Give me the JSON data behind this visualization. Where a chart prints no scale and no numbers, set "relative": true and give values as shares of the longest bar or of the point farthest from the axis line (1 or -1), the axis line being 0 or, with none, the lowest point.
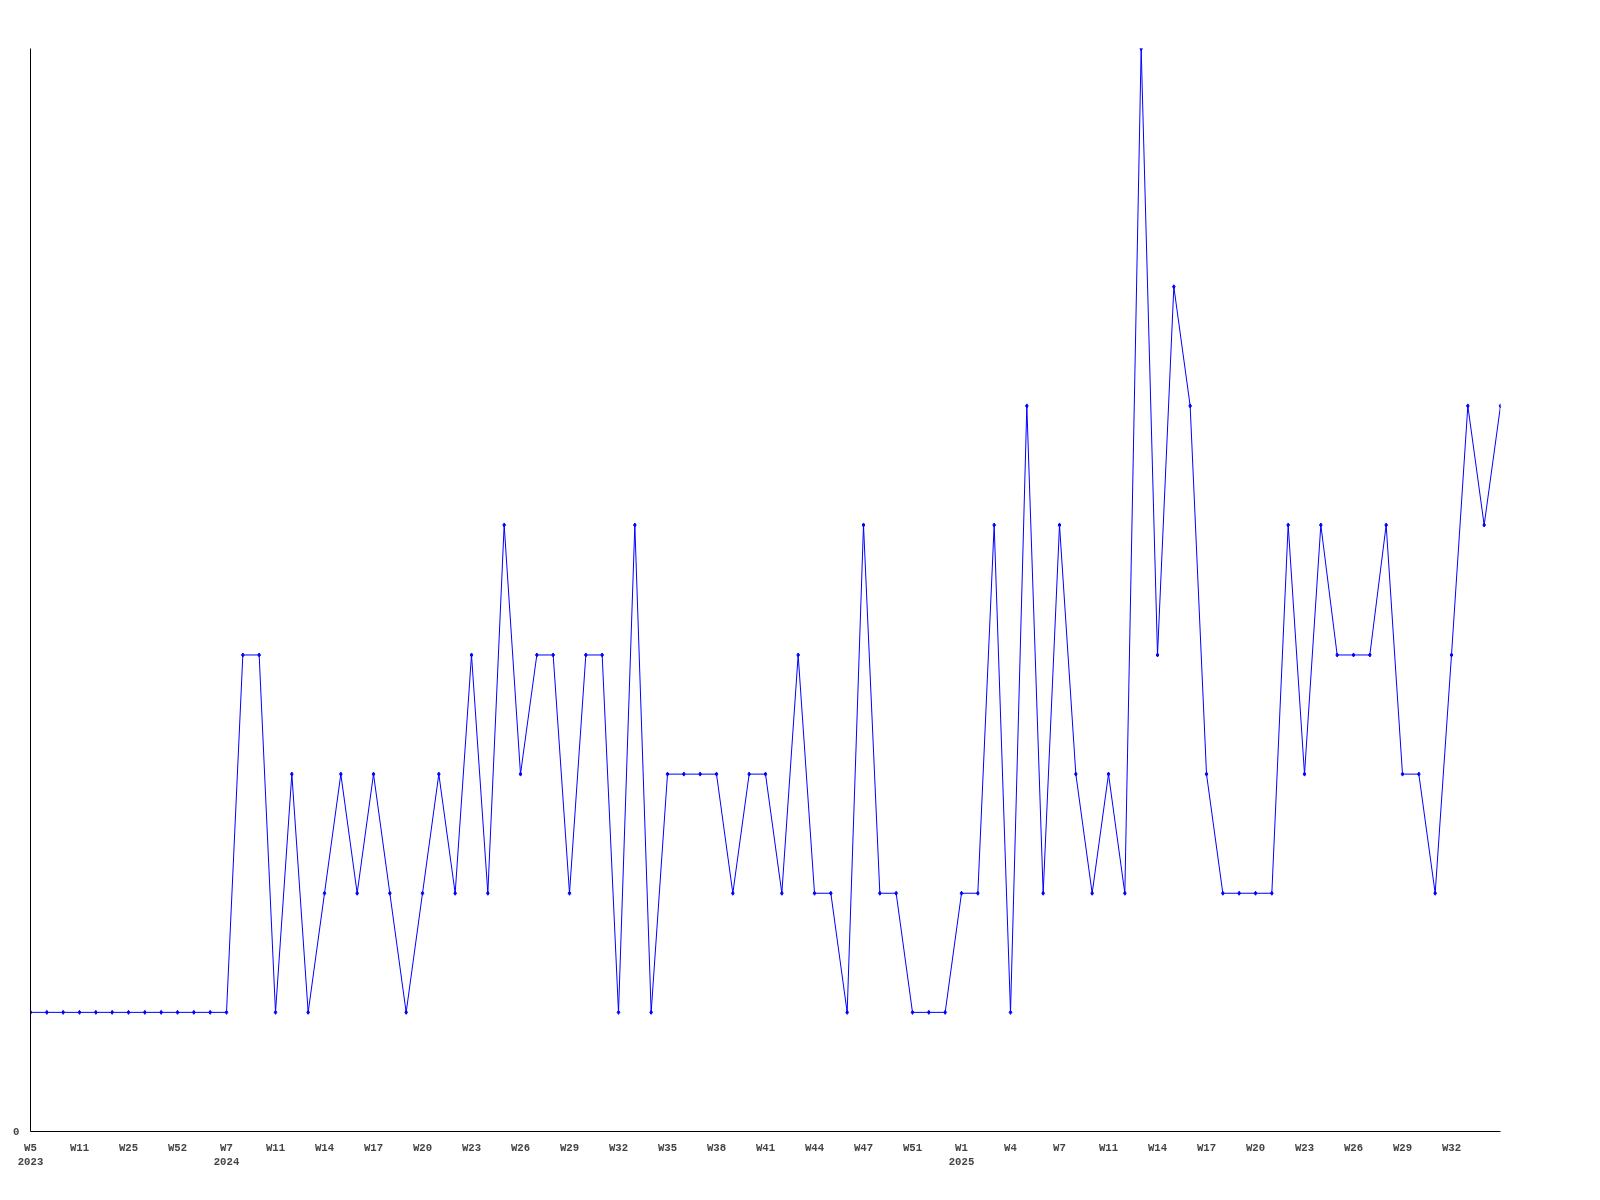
{
  "chart_data": {
    "type": "line",
    "relative": true,
    "annotations": [
      "0"
    ],
    "marker": "diamond",
    "line_style": "solid",
    "grid": false,
    "categories": [
      "W5\n2023",
      null,
      null,
      "W11",
      null,
      null,
      "W25",
      null,
      null,
      "W52",
      null,
      null,
      "W7\n2024",
      null,
      null,
      "W11",
      null,
      null,
      "W14",
      null,
      null,
      "W17",
      null,
      null,
      "W20",
      null,
      null,
      "W23",
      null,
      null,
      "W26",
      null,
      null,
      "W29",
      null,
      null,
      "W32",
      null,
      null,
      "W35",
      null,
      null,
      "W38",
      null,
      null,
      "W41",
      null,
      null,
      "W44",
      null,
      null,
      "W47",
      null,
      null,
      "W51",
      null,
      null,
      "W1\n2025",
      null,
      null,
      "W4",
      null,
      null,
      "W7",
      null,
      null,
      "W11",
      null,
      null,
      "W14",
      null,
      null,
      "W17",
      null,
      null,
      "W20",
      null,
      null,
      "W23",
      null,
      null,
      "W26",
      null,
      null,
      "W29",
      null,
      null,
      "W32",
      null,
      null,
      null
    ],
    "series": [
      {
        "color": "#0000ff",
        "values": [
          0.11,
          0.11,
          0.11,
          0.11,
          0.11,
          0.11,
          0.11,
          0.11,
          0.11,
          0.11,
          0.11,
          0.11,
          0.11,
          0.44,
          0.44,
          0.11,
          0.33,
          0.11,
          0.22,
          0.33,
          0.22,
          0.33,
          0.22,
          0.11,
          0.22,
          0.33,
          0.22,
          0.44,
          0.22,
          0.56,
          0.33,
          0.44,
          0.44,
          0.22,
          0.44,
          0.44,
          0.11,
          0.56,
          0.11,
          0.33,
          0.33,
          0.33,
          0.33,
          0.22,
          0.33,
          0.33,
          0.22,
          0.44,
          0.22,
          0.22,
          0.11,
          0.56,
          0.22,
          0.22,
          0.11,
          0.11,
          0.11,
          0.22,
          0.22,
          0.56,
          0.11,
          0.67,
          0.22,
          0.56,
          0.33,
          0.22,
          0.33,
          0.22,
          1,
          0.44,
          0.78,
          0.67,
          0.33,
          0.22,
          0.22,
          0.22,
          0.22,
          0.56,
          0.33,
          0.56,
          0.44,
          0.44,
          0.44,
          0.56,
          0.33,
          0.33,
          0.22,
          0.44,
          0.67,
          0.56,
          0.67
        ]
      }
    ]
  }
}
